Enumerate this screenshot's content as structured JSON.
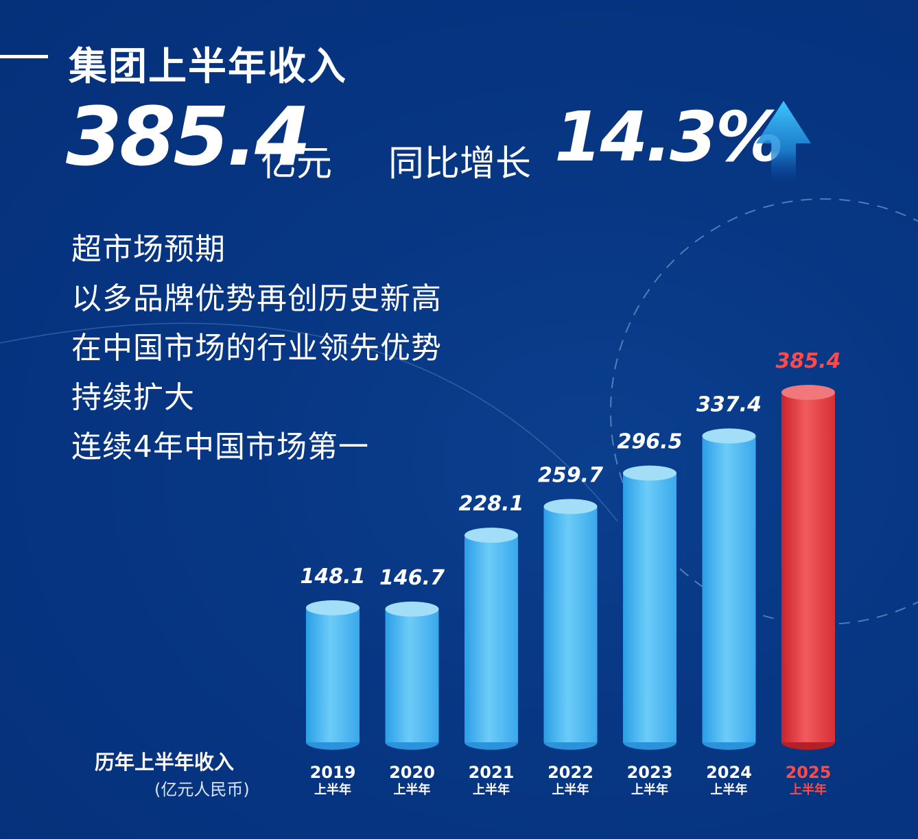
{
  "header": {
    "title": "集团上半年收入",
    "total_value": "385.4",
    "total_unit": "亿元",
    "growth_label": "同比增长",
    "growth_value": "14.3%"
  },
  "tagline": [
    "超市场预期",
    "以多品牌优势再创历史新高",
    "在中国市场的行业领先优势",
    "持续扩大",
    "连续4年中国市场第一"
  ],
  "legend": {
    "title": "历年上半年收入",
    "unit": "(亿元人民币)"
  },
  "colors": {
    "background": "#06357e",
    "bar_blue": "#43b4f0",
    "bar_highlight": "#e43a3e",
    "highlight_text": "#ff4a4a",
    "text": "#ffffff"
  },
  "chart_data": {
    "type": "bar",
    "categories": [
      "2019",
      "2020",
      "2021",
      "2022",
      "2023",
      "2024",
      "2025"
    ],
    "category_sublabel": "上半年",
    "values": [
      148.1,
      146.7,
      228.1,
      259.7,
      296.5,
      337.4,
      385.4
    ],
    "value_labels": [
      "148.1",
      "146.7",
      "228.1",
      "259.7",
      "296.5",
      "337.4",
      "385.4"
    ],
    "highlight_index": 6,
    "xlabel": "",
    "ylabel": "",
    "ylim": [
      0,
      385.4
    ],
    "grid": false
  }
}
